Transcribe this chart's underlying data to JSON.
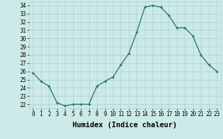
{
  "x": [
    0,
    1,
    2,
    3,
    4,
    5,
    6,
    7,
    8,
    9,
    10,
    11,
    12,
    13,
    14,
    15,
    16,
    17,
    18,
    19,
    20,
    21,
    22,
    23
  ],
  "y": [
    25.8,
    24.8,
    24.2,
    22.2,
    21.8,
    22.0,
    22.0,
    22.0,
    24.2,
    24.8,
    25.3,
    26.8,
    28.2,
    30.8,
    33.8,
    34.0,
    33.8,
    32.8,
    31.3,
    31.3,
    30.3,
    28.0,
    26.8,
    26.0
  ],
  "line_color": "#2d7a6e",
  "marker": "D",
  "marker_size": 1.8,
  "line_width": 1.0,
  "bg_color": "#cceae8",
  "grid_color": "#aacece",
  "xlabel": "Humidex (Indice chaleur)",
  "xlim": [
    -0.5,
    23.5
  ],
  "ylim": [
    21.5,
    34.5
  ],
  "yticks": [
    22,
    23,
    24,
    25,
    26,
    27,
    28,
    29,
    30,
    31,
    32,
    33,
    34
  ],
  "xticks": [
    0,
    1,
    2,
    3,
    4,
    5,
    6,
    7,
    8,
    9,
    10,
    11,
    12,
    13,
    14,
    15,
    16,
    17,
    18,
    19,
    20,
    21,
    22,
    23
  ],
  "tick_fontsize": 5.5,
  "xlabel_fontsize": 7.5
}
